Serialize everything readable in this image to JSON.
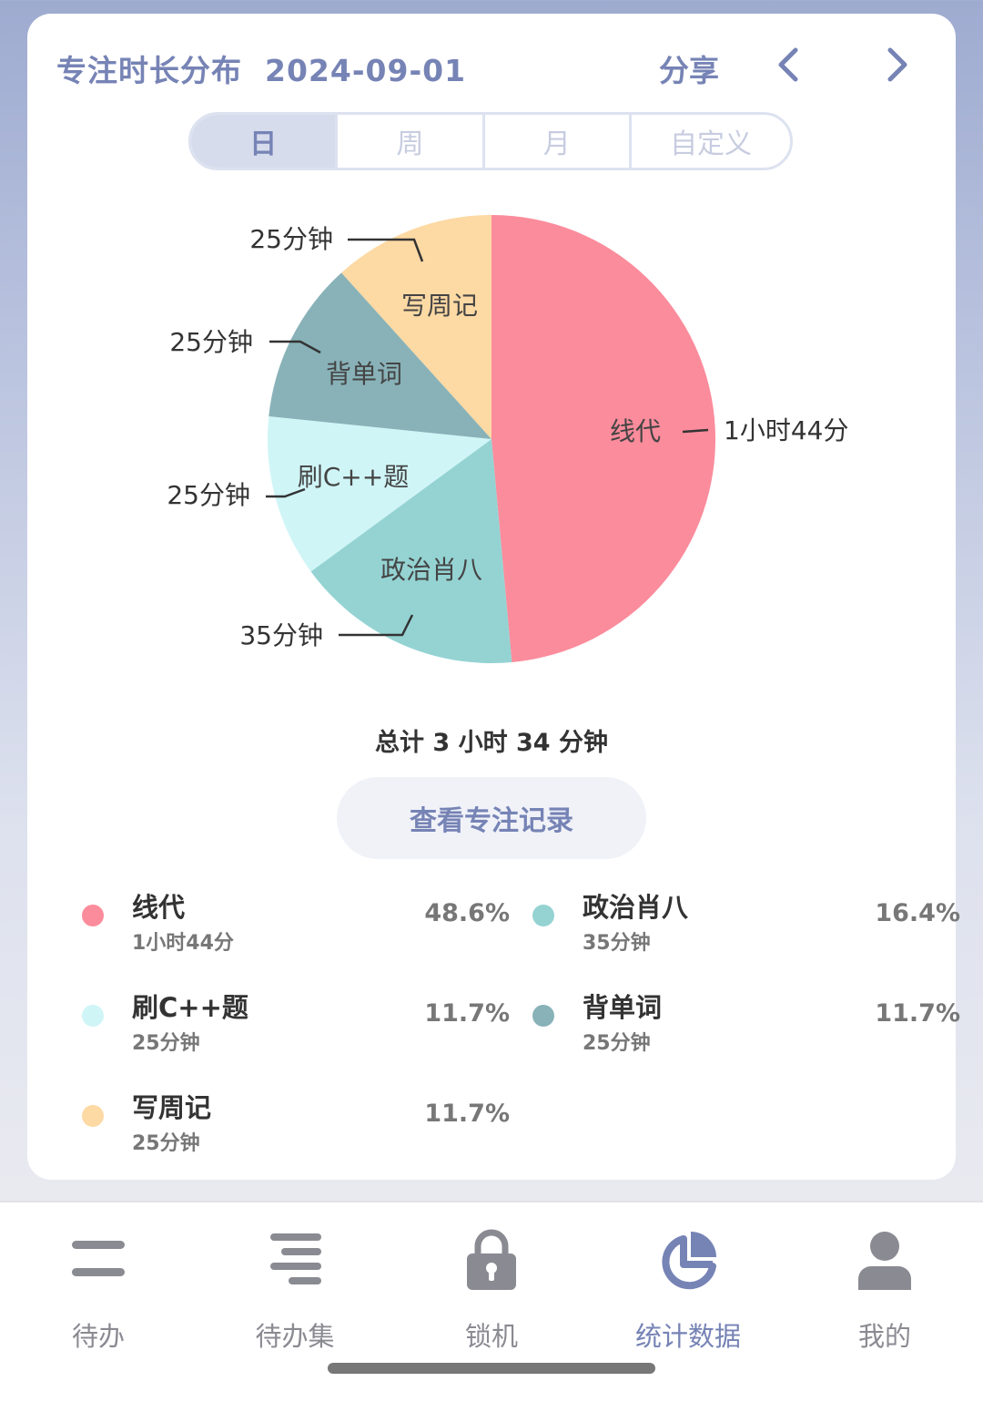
{
  "header": {
    "title": "专注时长分布",
    "date": "2024-09-01",
    "share_label": "分享",
    "prev_icon": "chevron-left-icon",
    "next_icon": "chevron-right-icon"
  },
  "range_tabs": [
    {
      "label": "日",
      "active": true
    },
    {
      "label": "周",
      "active": false
    },
    {
      "label": "月",
      "active": false
    },
    {
      "label": "自定义",
      "active": false
    }
  ],
  "chart_data": {
    "type": "pie",
    "slices": [
      {
        "name": "线代",
        "duration": "1小时44分",
        "percent": 48.6,
        "color": "#fb8c9c"
      },
      {
        "name": "政治肖八",
        "duration": "35分钟",
        "percent": 16.4,
        "color": "#95d3d3"
      },
      {
        "name": "刷C++题",
        "duration": "25分钟",
        "percent": 11.7,
        "color": "#d0f5f7"
      },
      {
        "name": "背单词",
        "duration": "25分钟",
        "percent": 11.7,
        "color": "#88b2b8"
      },
      {
        "name": "写周记",
        "duration": "25分钟",
        "percent": 11.7,
        "color": "#fdd9a4"
      }
    ]
  },
  "summary": {
    "total": "总计 3 小时 34 分钟"
  },
  "records_button": "查看专注记录",
  "legend": [
    {
      "name": "线代",
      "duration": "1小时44分",
      "percent": "48.6%",
      "color": "#fb8c9c"
    },
    {
      "name": "政治肖八",
      "duration": "35分钟",
      "percent": "16.4%",
      "color": "#95d3d3"
    },
    {
      "name": "刷C++题",
      "duration": "25分钟",
      "percent": "11.7%",
      "color": "#d0f5f7"
    },
    {
      "name": "背单词",
      "duration": "25分钟",
      "percent": "11.7%",
      "color": "#88b2b8"
    },
    {
      "name": "写周记",
      "duration": "25分钟",
      "percent": "11.7%",
      "color": "#fdd9a4"
    }
  ],
  "tabbar": [
    {
      "label": "待办",
      "icon": "todo-list-icon",
      "active": false
    },
    {
      "label": "待办集",
      "icon": "todo-collection-icon",
      "active": false
    },
    {
      "label": "锁机",
      "icon": "lock-icon",
      "active": false
    },
    {
      "label": "统计数据",
      "icon": "pie-chart-icon",
      "active": true
    },
    {
      "label": "我的",
      "icon": "user-icon",
      "active": false
    }
  ],
  "colors": {
    "accent": "#7683b5",
    "inactive": "#8a8a92"
  }
}
